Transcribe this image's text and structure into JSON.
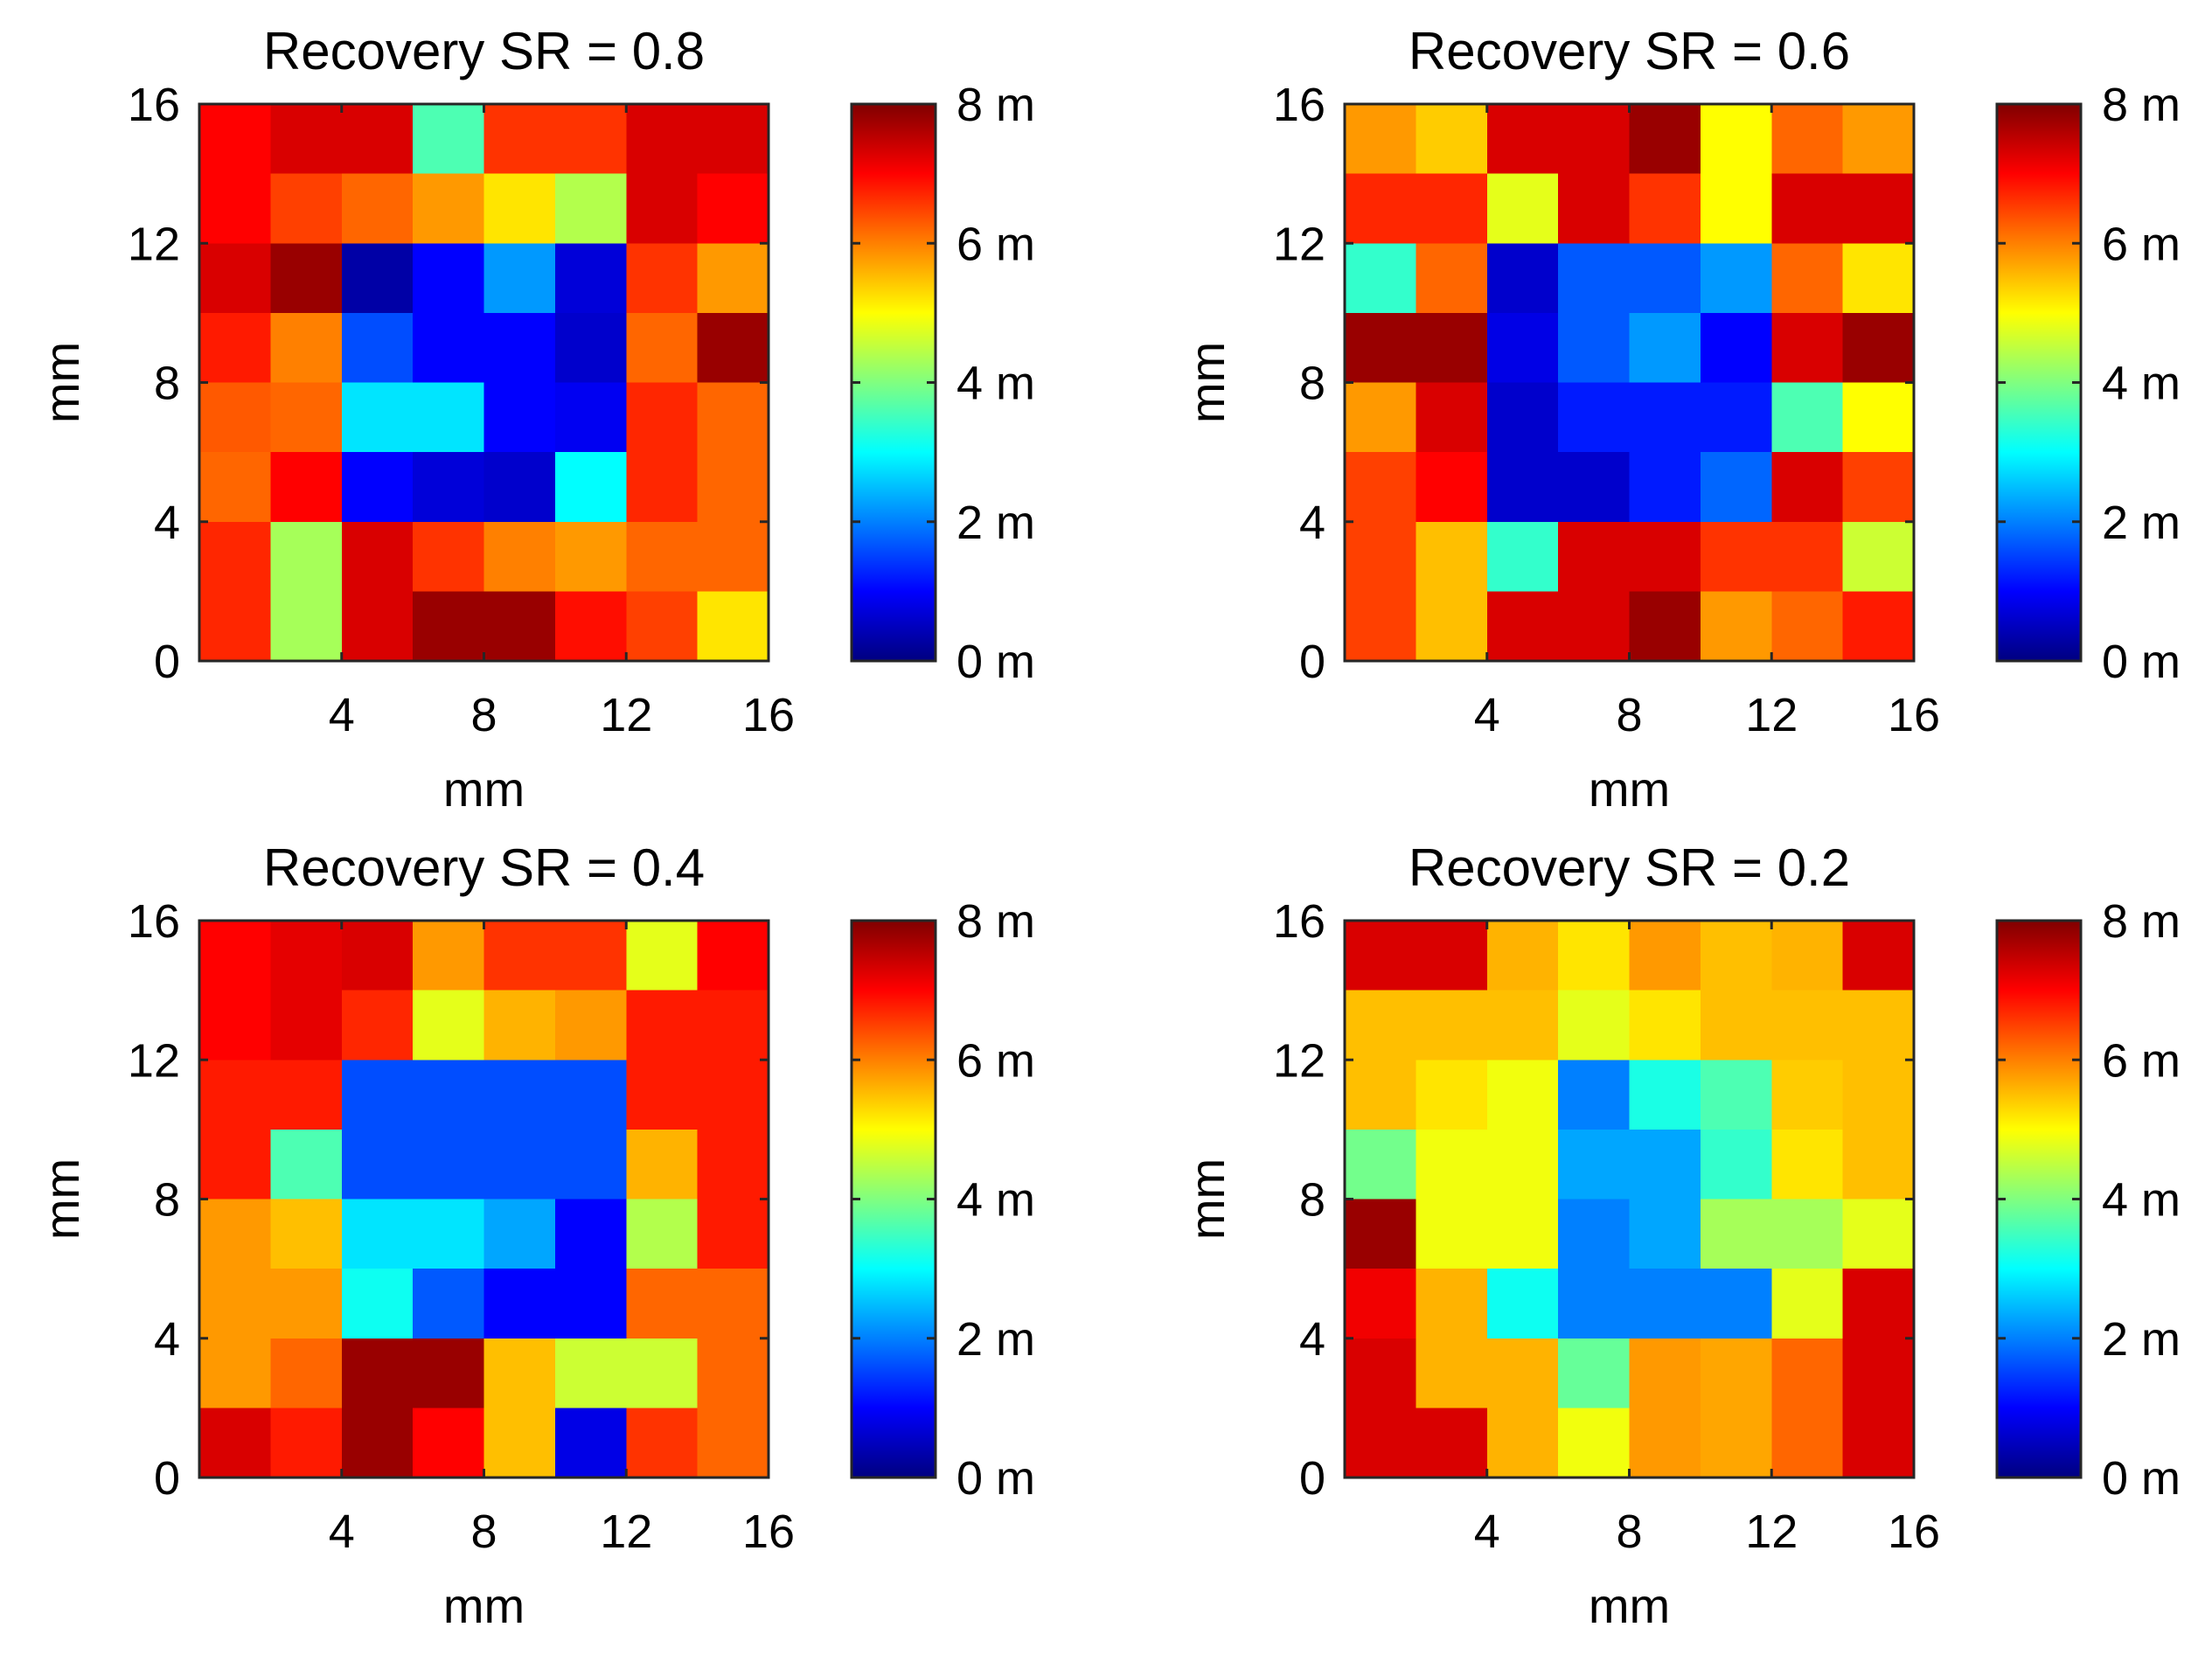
{
  "figure": {
    "background": "#ffffff"
  },
  "colormap": {
    "name": "jet"
  },
  "chart_data": [
    {
      "type": "heatmap",
      "title": "Recovery SR = 0.8",
      "xlabel": "mm",
      "ylabel": "mm",
      "xlim": [
        0,
        16
      ],
      "ylim": [
        0,
        16
      ],
      "xticks": [
        "4",
        "8",
        "12",
        "16"
      ],
      "yticks": [
        "0",
        "4",
        "8",
        "12",
        "16"
      ],
      "colorbar": {
        "range": [
          0,
          8
        ],
        "ticks": [
          "0 m",
          "2 m",
          "4 m",
          "6 m",
          "8 m"
        ]
      },
      "rows_top_to_bottom": [
        [
          7.0,
          7.3,
          7.3,
          3.6,
          6.6,
          6.6,
          7.3,
          7.3
        ],
        [
          7.0,
          6.5,
          6.2,
          5.8,
          5.2,
          4.4,
          7.3,
          7.0
        ],
        [
          7.3,
          7.8,
          0.3,
          1.0,
          2.2,
          0.7,
          6.6,
          5.8
        ],
        [
          6.8,
          6.0,
          1.6,
          1.0,
          1.0,
          0.6,
          6.2,
          7.8
        ],
        [
          6.3,
          6.2,
          2.8,
          2.8,
          1.0,
          0.9,
          6.7,
          6.2
        ],
        [
          6.2,
          7.0,
          1.0,
          0.7,
          0.6,
          3.0,
          6.7,
          6.2
        ],
        [
          6.7,
          4.3,
          7.3,
          6.6,
          6.0,
          5.8,
          6.2,
          6.2
        ],
        [
          6.7,
          4.3,
          7.3,
          7.8,
          7.8,
          6.9,
          6.5,
          5.2
        ]
      ]
    },
    {
      "type": "heatmap",
      "title": "Recovery SR = 0.6",
      "xlabel": "mm",
      "ylabel": "mm",
      "xlim": [
        0,
        16
      ],
      "ylim": [
        0,
        16
      ],
      "xticks": [
        "4",
        "8",
        "12",
        "16"
      ],
      "yticks": [
        "0",
        "4",
        "8",
        "12",
        "16"
      ],
      "colorbar": {
        "range": [
          0,
          8
        ],
        "ticks": [
          "0 m",
          "2 m",
          "4 m",
          "6 m",
          "8 m"
        ]
      },
      "rows_top_to_bottom": [
        [
          5.8,
          5.4,
          7.3,
          7.3,
          7.8,
          5.0,
          6.2,
          5.8
        ],
        [
          6.7,
          6.7,
          4.8,
          7.3,
          6.6,
          5.0,
          7.3,
          7.3
        ],
        [
          3.4,
          6.2,
          0.6,
          1.7,
          1.7,
          2.2,
          6.2,
          5.2
        ],
        [
          7.8,
          7.8,
          0.8,
          1.7,
          2.2,
          1.0,
          7.3,
          7.8
        ],
        [
          5.8,
          7.3,
          0.6,
          1.2,
          1.2,
          1.2,
          3.6,
          5.0
        ],
        [
          6.5,
          7.0,
          0.6,
          0.6,
          1.2,
          1.8,
          7.3,
          6.5
        ],
        [
          6.5,
          5.5,
          3.4,
          7.3,
          7.3,
          6.6,
          6.6,
          4.6
        ],
        [
          6.5,
          5.5,
          7.3,
          7.3,
          7.8,
          5.8,
          6.2,
          6.8
        ]
      ]
    },
    {
      "type": "heatmap",
      "title": "Recovery SR = 0.4",
      "xlabel": "mm",
      "ylabel": "mm",
      "xlim": [
        0,
        16
      ],
      "ylim": [
        0,
        16
      ],
      "xticks": [
        "4",
        "8",
        "12",
        "16"
      ],
      "yticks": [
        "0",
        "4",
        "8",
        "12",
        "16"
      ],
      "colorbar": {
        "range": [
          0,
          8
        ],
        "ticks": [
          "0 m",
          "2 m",
          "4 m",
          "6 m",
          "8 m"
        ]
      },
      "rows_top_to_bottom": [
        [
          7.0,
          7.2,
          7.3,
          5.8,
          6.6,
          6.6,
          4.8,
          7.0
        ],
        [
          7.0,
          7.2,
          6.7,
          4.8,
          5.6,
          5.8,
          6.8,
          6.8
        ],
        [
          6.8,
          6.8,
          1.6,
          1.6,
          1.6,
          1.6,
          6.8,
          6.8
        ],
        [
          6.8,
          3.6,
          1.6,
          1.6,
          1.6,
          1.6,
          5.6,
          6.8
        ],
        [
          5.8,
          5.5,
          2.8,
          2.8,
          2.3,
          1.0,
          4.4,
          6.8
        ],
        [
          5.8,
          5.8,
          3.1,
          1.7,
          1.0,
          1.0,
          6.2,
          6.2
        ],
        [
          5.8,
          6.2,
          7.8,
          7.8,
          5.5,
          4.6,
          4.6,
          6.2
        ],
        [
          7.3,
          6.8,
          7.8,
          7.0,
          5.5,
          0.8,
          6.6,
          6.2
        ]
      ]
    },
    {
      "type": "heatmap",
      "title": "Recovery SR = 0.2",
      "xlabel": "mm",
      "ylabel": "mm",
      "xlim": [
        0,
        16
      ],
      "ylim": [
        0,
        16
      ],
      "xticks": [
        "4",
        "8",
        "12",
        "16"
      ],
      "yticks": [
        "0",
        "4",
        "8",
        "12",
        "16"
      ],
      "colorbar": {
        "range": [
          0,
          8
        ],
        "ticks": [
          "0 m",
          "2 m",
          "4 m",
          "6 m",
          "8 m"
        ]
      },
      "rows_top_to_bottom": [
        [
          7.3,
          7.3,
          5.6,
          5.2,
          5.8,
          5.5,
          5.6,
          7.3
        ],
        [
          5.5,
          5.5,
          5.5,
          4.8,
          5.2,
          5.5,
          5.5,
          5.5
        ],
        [
          5.5,
          5.2,
          4.9,
          2.0,
          3.2,
          3.6,
          5.4,
          5.5
        ],
        [
          3.9,
          4.9,
          4.9,
          2.3,
          2.3,
          3.4,
          5.2,
          5.5
        ],
        [
          7.8,
          4.9,
          4.9,
          2.0,
          2.3,
          4.3,
          4.3,
          4.8
        ],
        [
          7.1,
          5.6,
          3.1,
          2.0,
          2.0,
          2.0,
          4.8,
          7.3
        ],
        [
          7.3,
          5.6,
          5.6,
          3.8,
          5.8,
          5.7,
          6.2,
          7.3
        ],
        [
          7.3,
          7.3,
          5.6,
          4.9,
          5.8,
          5.7,
          6.2,
          7.3
        ]
      ]
    }
  ]
}
